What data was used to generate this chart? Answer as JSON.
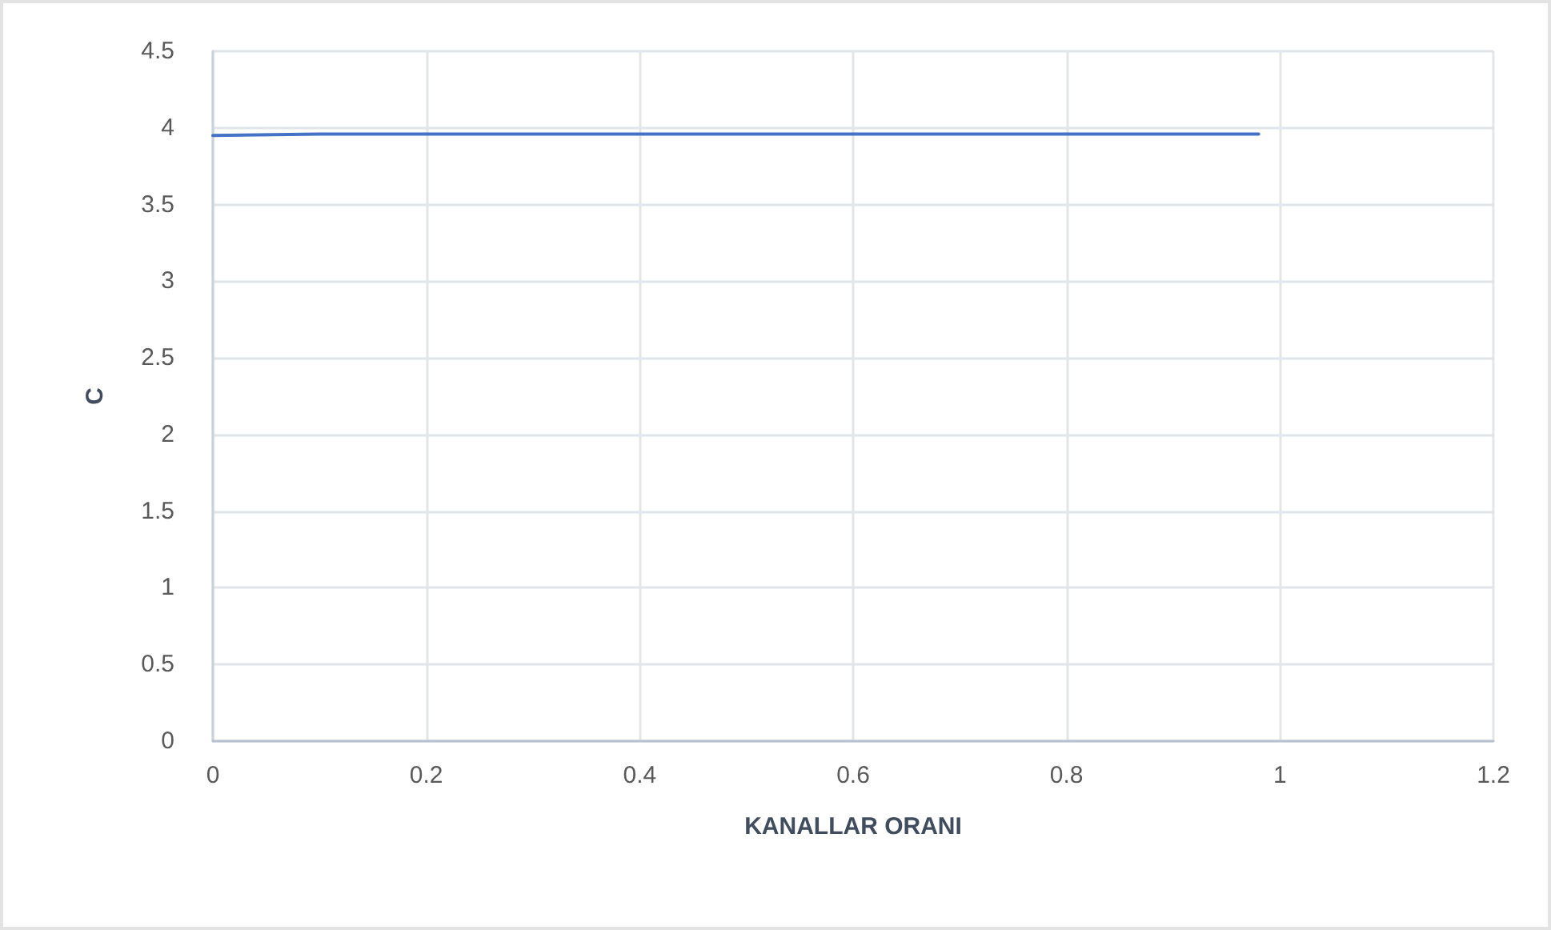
{
  "chart_data": {
    "type": "line",
    "xlabel": "KANALLAR ORANI",
    "ylabel": "C",
    "x": [
      0,
      0.1,
      0.2,
      0.3,
      0.4,
      0.5,
      0.6,
      0.7,
      0.8,
      0.9,
      0.98
    ],
    "series": [
      {
        "color": "#4472c4",
        "values": [
          3.95,
          3.96,
          3.96,
          3.96,
          3.96,
          3.96,
          3.96,
          3.96,
          3.96,
          3.96,
          3.96
        ]
      }
    ],
    "xlim": [
      0,
      1.2
    ],
    "xticks": [
      0,
      0.2,
      0.4,
      0.6,
      0.8,
      1,
      1.2
    ],
    "ylim": [
      0,
      4.5
    ],
    "yticks": [
      0,
      0.5,
      1,
      1.5,
      2,
      2.5,
      3,
      3.5,
      4,
      4.5
    ],
    "grid": true,
    "marker": "none",
    "line_style": "solid"
  }
}
